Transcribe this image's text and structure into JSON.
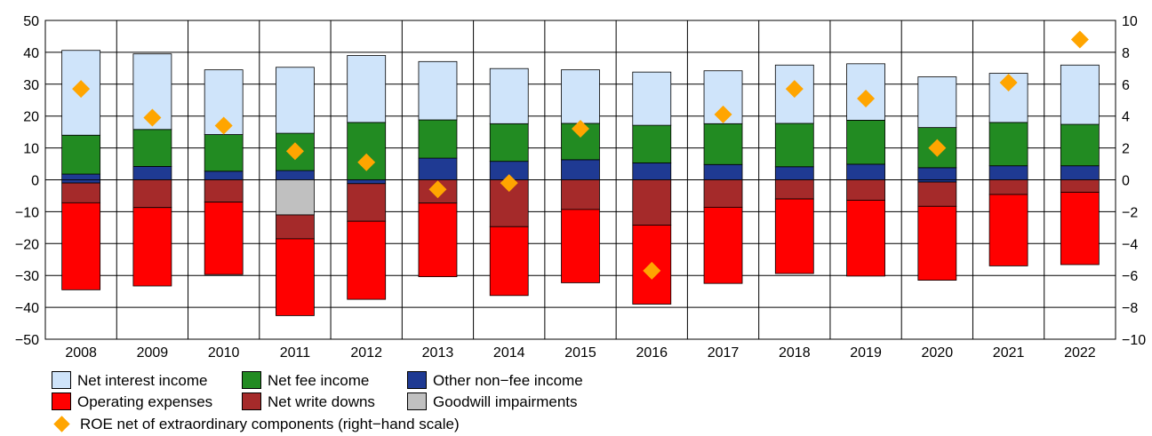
{
  "chart_data": {
    "type": "bar",
    "stacked": true,
    "categories": [
      "2008",
      "2009",
      "2010",
      "2011",
      "2012",
      "2013",
      "2014",
      "2015",
      "2016",
      "2017",
      "2018",
      "2019",
      "2020",
      "2021",
      "2022"
    ],
    "y_left": {
      "min": -50,
      "max": 50,
      "ticks": [
        -50,
        -40,
        -30,
        -20,
        -10,
        0,
        10,
        20,
        30,
        40,
        50
      ],
      "tick_labels": [
        "−50",
        "−40",
        "−30",
        "−20",
        "−10",
        "0",
        "10",
        "20",
        "30",
        "40",
        "50"
      ]
    },
    "y_right": {
      "min": -10,
      "max": 10,
      "ticks": [
        -10,
        -8,
        -6,
        -4,
        -2,
        0,
        2,
        4,
        6,
        8,
        10
      ],
      "tick_labels": [
        "−10",
        "−8",
        "−6",
        "−4",
        "−2",
        "0",
        "2",
        "4",
        "6",
        "8",
        "10"
      ]
    },
    "grid": true,
    "positive_series": [
      {
        "key": "other",
        "name": "Other non-fee income",
        "color": "#1f3a93",
        "values": [
          1.8,
          4.2,
          2.7,
          2.9,
          0.0,
          6.8,
          5.8,
          6.3,
          5.3,
          4.8,
          4.1,
          4.9,
          3.8,
          4.4,
          4.4
        ]
      },
      {
        "key": "fee",
        "name": "Net fee income",
        "color": "#228b22",
        "values": [
          12.2,
          11.6,
          11.5,
          11.7,
          18.0,
          12.0,
          11.8,
          11.4,
          11.8,
          12.8,
          13.6,
          13.8,
          12.6,
          13.6,
          13.0
        ]
      },
      {
        "key": "nii",
        "name": "Net interest income",
        "color": "#cfe4fa",
        "values": [
          26.6,
          23.7,
          20.3,
          20.7,
          21.0,
          18.3,
          17.3,
          16.8,
          16.7,
          16.6,
          18.3,
          17.7,
          15.9,
          15.4,
          18.6
        ]
      }
    ],
    "negative_series": [
      {
        "key": "other_neg",
        "name": "Other non-fee income",
        "color": "#1f3a93",
        "values": [
          -1.0,
          0.0,
          0.0,
          0.0,
          -1.2,
          0.0,
          0.0,
          0.0,
          0.0,
          0.0,
          0.0,
          0.0,
          -0.7,
          0.0,
          0.0
        ]
      },
      {
        "key": "gw",
        "name": "Goodwill impairments",
        "color": "#c0c0c0",
        "values": [
          0.0,
          0.0,
          0.0,
          -11.0,
          0.0,
          0.0,
          0.0,
          0.0,
          0.0,
          0.0,
          0.0,
          0.0,
          0.0,
          0.0,
          0.0
        ]
      },
      {
        "key": "wd",
        "name": "Net write downs",
        "color": "#a52a2a",
        "values": [
          -6.2,
          -8.7,
          -7.0,
          -7.5,
          -11.8,
          -7.3,
          -14.7,
          -9.3,
          -14.2,
          -8.6,
          -6.0,
          -6.4,
          -7.6,
          -4.6,
          -3.9
        ]
      },
      {
        "key": "opex",
        "name": "Operating expenses",
        "color": "#ff0000",
        "values": [
          -27.3,
          -24.6,
          -22.7,
          -24.1,
          -24.5,
          -23.1,
          -21.6,
          -23.0,
          -24.8,
          -23.9,
          -23.4,
          -23.8,
          -23.2,
          -22.4,
          -22.7
        ]
      }
    ],
    "roe": {
      "name": "ROE net of extraordinary components (right−hand scale)",
      "color": "#ffa500",
      "axis": "right",
      "values": [
        5.7,
        3.9,
        3.4,
        1.8,
        1.1,
        -0.6,
        -0.2,
        3.2,
        -5.7,
        4.1,
        5.7,
        5.1,
        2.0,
        6.1,
        8.8
      ]
    },
    "legend": {
      "position": "bottom-left",
      "row1": [
        "Net interest income",
        "Net fee income",
        "Other non−fee income"
      ],
      "row2": [
        "Operating expenses",
        "Net write downs",
        "Goodwill impairments"
      ],
      "row3": "ROE net of extraordinary components (right−hand scale)"
    },
    "colors": {
      "nii": "#cfe4fa",
      "fee": "#228b22",
      "other": "#1f3a93",
      "opex": "#ff0000",
      "wd": "#a52a2a",
      "gw": "#c0c0c0",
      "roe": "#ffa500"
    }
  }
}
